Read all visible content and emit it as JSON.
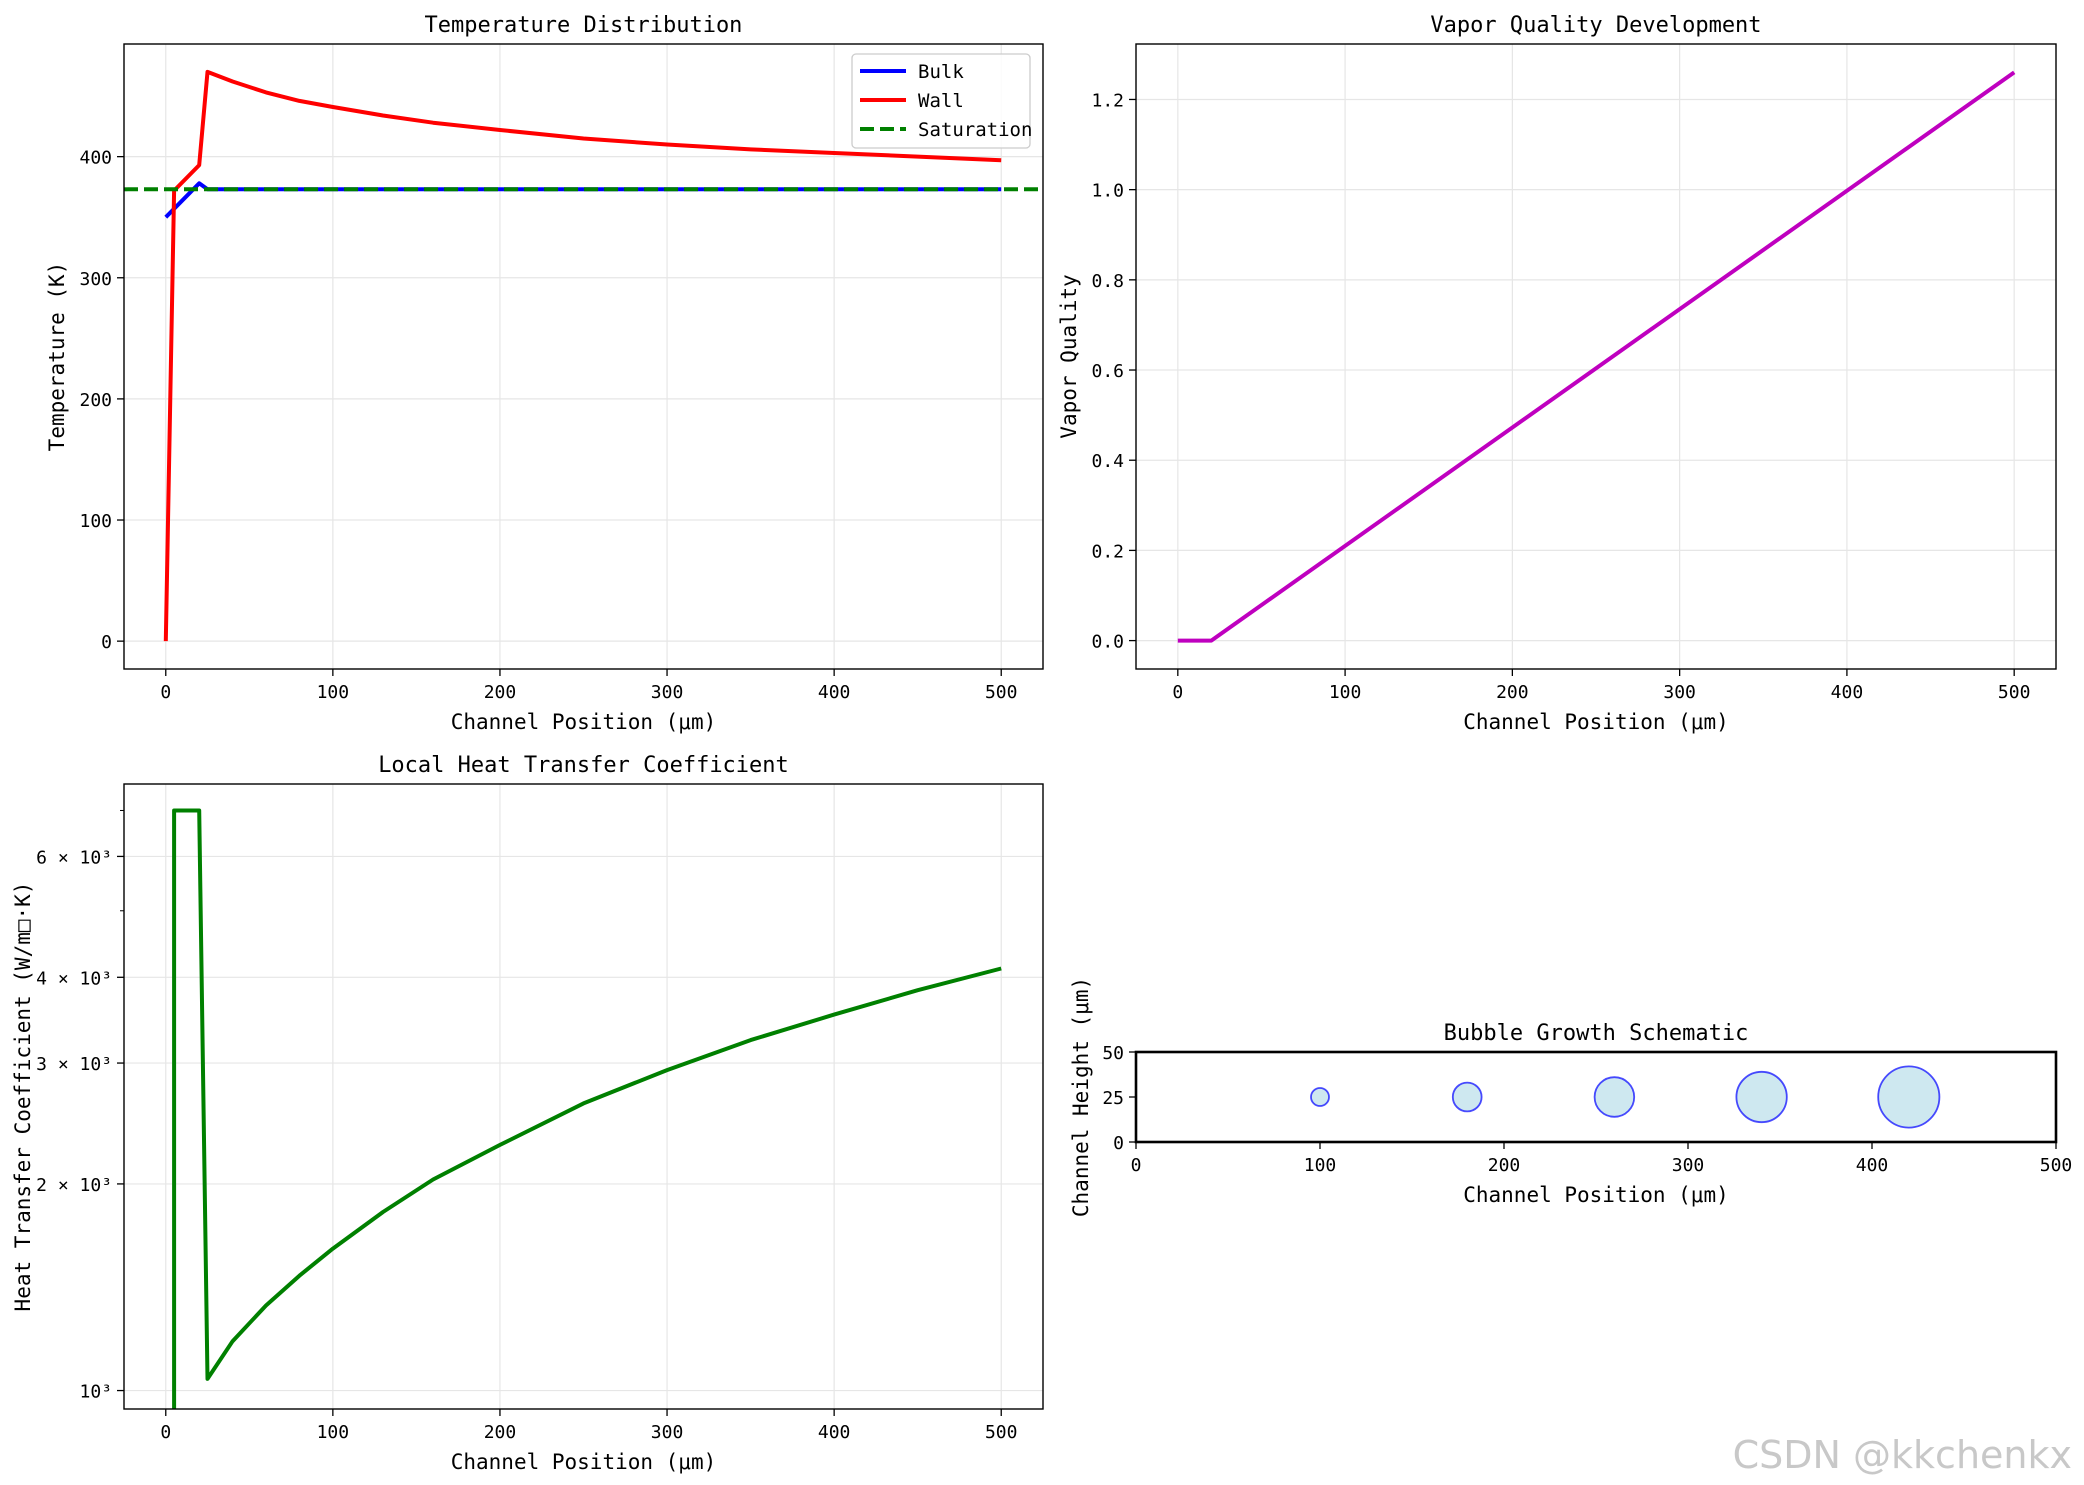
{
  "chart_data": [
    {
      "type": "line",
      "title": "Temperature Distribution",
      "xlabel": "Channel Position (μm)",
      "ylabel": "Temperature (K)",
      "xlim": [
        -25,
        525
      ],
      "ylim": [
        -23,
        493
      ],
      "xticks": [
        0,
        100,
        200,
        300,
        400,
        500
      ],
      "yticks": [
        0,
        100,
        200,
        300,
        400
      ],
      "grid": true,
      "legend_position": "top-right",
      "series": [
        {
          "name": "Bulk",
          "color": "#0000ff",
          "style": "solid",
          "x": [
            0,
            20,
            25,
            500
          ],
          "y": [
            350,
            378,
            373,
            373
          ]
        },
        {
          "name": "Wall",
          "color": "#ff0000",
          "style": "solid",
          "x": [
            0,
            5,
            20,
            25,
            40,
            60,
            80,
            100,
            130,
            160,
            200,
            250,
            300,
            350,
            400,
            450,
            500
          ],
          "y": [
            0,
            372,
            393,
            470,
            462,
            453,
            446,
            441,
            434,
            428,
            422,
            415,
            410,
            406,
            403,
            400,
            397
          ]
        },
        {
          "name": "Saturation",
          "color": "#008000",
          "style": "dashed",
          "x": [
            -25,
            525
          ],
          "y": [
            373,
            373
          ]
        }
      ]
    },
    {
      "type": "line",
      "title": "Vapor Quality Development",
      "xlabel": "Channel Position (μm)",
      "ylabel": "Vapor Quality",
      "xlim": [
        -25,
        525
      ],
      "ylim": [
        -0.063,
        1.323
      ],
      "xticks": [
        0,
        100,
        200,
        300,
        400,
        500
      ],
      "yticks": [
        "0.0",
        "0.2",
        "0.4",
        "0.6",
        "0.8",
        "1.0",
        "1.2"
      ],
      "grid": true,
      "series": [
        {
          "name": "Vapor Quality",
          "color": "#bf00bf",
          "style": "solid",
          "x": [
            0,
            20,
            500
          ],
          "y": [
            0,
            0,
            1.26
          ]
        }
      ]
    },
    {
      "type": "line",
      "title": "Local Heat Transfer Coefficient",
      "xlabel": "Channel Position (μm)",
      "ylabel": "Heat Transfer Coefficient (W/m□·K)",
      "xlim": [
        -25,
        525
      ],
      "yscale": "log",
      "ylim": [
        940,
        7650
      ],
      "yticks": [
        {
          "value": 1000,
          "label": "10³"
        },
        {
          "value": 2000,
          "label": "2 × 10³"
        },
        {
          "value": 3000,
          "label": "3 × 10³"
        },
        {
          "value": 4000,
          "label": "4 × 10³"
        },
        {
          "value": 6000,
          "label": "6 × 10³"
        }
      ],
      "minor_yticks": [
        5000,
        7000
      ],
      "xticks": [
        0,
        100,
        200,
        300,
        400,
        500
      ],
      "grid": true,
      "series": [
        {
          "name": "HTC",
          "color": "#008000",
          "style": "solid",
          "x": [
            5,
            5,
            20,
            25,
            40,
            60,
            80,
            100,
            130,
            160,
            200,
            250,
            300,
            350,
            400,
            450,
            500
          ],
          "y": [
            940,
            7000,
            7000,
            1040,
            1180,
            1330,
            1470,
            1610,
            1820,
            2030,
            2280,
            2620,
            2930,
            3240,
            3530,
            3830,
            4120
          ]
        }
      ]
    },
    {
      "type": "scatter",
      "title": "Bubble Growth Schematic",
      "xlabel": "Channel Position (μm)",
      "ylabel": "Channel Height (μm)",
      "xlim": [
        0,
        500
      ],
      "ylim": [
        0,
        50
      ],
      "xticks": [
        0,
        100,
        200,
        300,
        400,
        500
      ],
      "yticks": [
        0,
        25,
        50
      ],
      "grid": false,
      "bubbles": [
        {
          "x": 100,
          "y": 25,
          "r": 5
        },
        {
          "x": 180,
          "y": 25,
          "r": 8
        },
        {
          "x": 260,
          "y": 25,
          "r": 11
        },
        {
          "x": 340,
          "y": 25,
          "r": 14
        },
        {
          "x": 420,
          "y": 25,
          "r": 17
        }
      ],
      "bubble_fill": "#add8e6",
      "bubble_edge": "#0000ff"
    }
  ],
  "watermark": "CSDN @kkchenkx"
}
